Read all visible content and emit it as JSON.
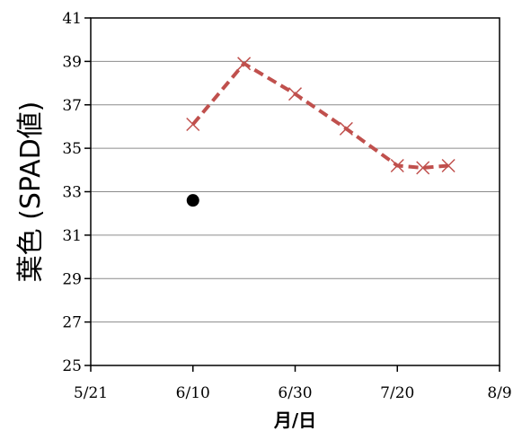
{
  "chart_data": {
    "type": "line",
    "xlabel": "月/日",
    "ylabel": "葉色 (SPAD値)",
    "x_ticks": [
      "5/21",
      "6/10",
      "6/30",
      "7/20",
      "8/9"
    ],
    "y_ticks": [
      "25",
      "27",
      "29",
      "31",
      "33",
      "35",
      "37",
      "39",
      "41"
    ],
    "xlim": [
      "5/21",
      "8/9"
    ],
    "ylim": [
      25,
      41
    ],
    "grid": "horizontal",
    "legend": "none",
    "series": [
      {
        "marker": "x",
        "line": "dashed",
        "color": "#C0504D",
        "points": [
          {
            "x": "6/10",
            "y": 36.1
          },
          {
            "x": "6/20",
            "y": 38.9
          },
          {
            "x": "6/30",
            "y": 37.5
          },
          {
            "x": "7/10",
            "y": 35.9
          },
          {
            "x": "7/20",
            "y": 34.2
          },
          {
            "x": "7/25",
            "y": 34.1
          },
          {
            "x": "7/30",
            "y": 34.2
          }
        ]
      },
      {
        "marker": "circle",
        "line": "none",
        "color": "#000000",
        "points": [
          {
            "x": "6/10",
            "y": 32.6
          }
        ]
      }
    ]
  }
}
